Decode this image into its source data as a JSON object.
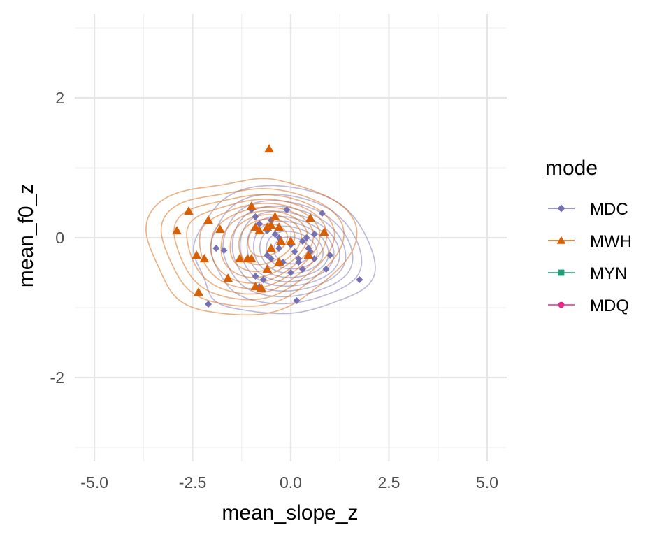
{
  "chart_data": {
    "type": "scatter",
    "xlabel": "mean_slope_z",
    "ylabel": "mean_f0_z",
    "xlim": [
      -5.5,
      5.5
    ],
    "ylim": [
      -3.2,
      3.2
    ],
    "x_ticks": [
      -5.0,
      -2.5,
      0.0,
      2.5,
      5.0
    ],
    "x_tick_labels": [
      "-5.0",
      "-2.5",
      "0.0",
      "2.5",
      "5.0"
    ],
    "y_ticks": [
      -2,
      0,
      2
    ],
    "y_tick_labels": [
      "-2",
      "0",
      "2"
    ],
    "grid": true,
    "legend_title": "mode",
    "legend_position": "right",
    "series": [
      {
        "name": "MDC",
        "color": "#7570b3",
        "shape": "diamond",
        "points": [
          [
            -1.9,
            -0.15
          ],
          [
            -1.7,
            -0.18
          ],
          [
            -2.1,
            -0.95
          ],
          [
            -1.0,
            0.4
          ],
          [
            -0.9,
            0.3
          ],
          [
            -0.8,
            0.2
          ],
          [
            -0.6,
            0.1
          ],
          [
            -0.5,
            0.25
          ],
          [
            -0.4,
            0.05
          ],
          [
            -0.3,
            0.0
          ],
          [
            -0.1,
            0.4
          ],
          [
            0.0,
            -0.1
          ],
          [
            0.1,
            -0.2
          ],
          [
            0.2,
            -0.3
          ],
          [
            0.3,
            -0.05
          ],
          [
            0.4,
            0.0
          ],
          [
            0.5,
            -0.2
          ],
          [
            0.6,
            0.05
          ],
          [
            0.8,
            0.35
          ],
          [
            1.0,
            -0.25
          ],
          [
            -0.2,
            -0.35
          ],
          [
            0.0,
            -0.5
          ],
          [
            0.15,
            -0.9
          ],
          [
            -0.9,
            -0.55
          ],
          [
            -0.7,
            -0.6
          ],
          [
            -0.5,
            -0.3
          ],
          [
            0.3,
            -0.45
          ],
          [
            0.9,
            -0.45
          ],
          [
            1.75,
            -0.6
          ],
          [
            -0.3,
            -0.15
          ],
          [
            0.2,
            -0.35
          ],
          [
            0.6,
            -0.3
          ],
          [
            -0.6,
            -0.25
          ],
          [
            -0.8,
            -0.7
          ],
          [
            0.45,
            -0.15
          ]
        ]
      },
      {
        "name": "MWH",
        "color": "#d95f02",
        "shape": "triangle",
        "points": [
          [
            -0.55,
            1.27
          ],
          [
            -2.6,
            0.38
          ],
          [
            -2.9,
            0.1
          ],
          [
            -2.1,
            0.25
          ],
          [
            -1.8,
            0.12
          ],
          [
            -2.4,
            -0.25
          ],
          [
            -2.2,
            -0.3
          ],
          [
            -2.35,
            -0.78
          ],
          [
            -1.6,
            -0.58
          ],
          [
            -1.3,
            -0.3
          ],
          [
            -1.1,
            -0.3
          ],
          [
            -1.0,
            0.45
          ],
          [
            -0.9,
            0.15
          ],
          [
            -0.8,
            0.1
          ],
          [
            -0.6,
            0.15
          ],
          [
            -0.5,
            0.18
          ],
          [
            -0.4,
            0.3
          ],
          [
            -0.3,
            0.15
          ],
          [
            -0.25,
            -0.05
          ],
          [
            -0.5,
            -0.15
          ],
          [
            -0.6,
            -0.45
          ],
          [
            -0.9,
            -0.7
          ],
          [
            -0.75,
            -0.72
          ],
          [
            0.0,
            -0.05
          ],
          [
            0.45,
            -0.25
          ],
          [
            0.5,
            0.28
          ],
          [
            0.85,
            0.08
          ],
          [
            -1.0,
            -0.3
          ],
          [
            -0.3,
            -0.35
          ]
        ]
      },
      {
        "name": "MYN",
        "color": "#1b9e77",
        "shape": "square",
        "points": []
      },
      {
        "name": "MDQ",
        "color": "#e7298a",
        "shape": "circle",
        "points": []
      }
    ]
  }
}
